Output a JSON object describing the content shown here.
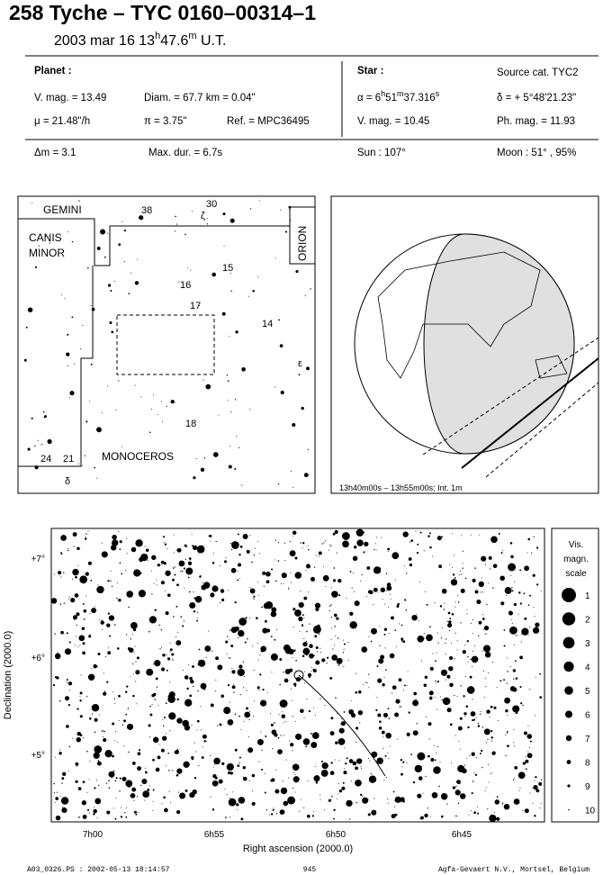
{
  "header": {
    "title": "258 Tyche  –  TYC 0160–00314–1",
    "date": [
      "2003 mar 16  13",
      "h",
      "47.6",
      "m",
      " U.T."
    ]
  },
  "info": {
    "planet_label": "Planet :",
    "star_label": "Star :",
    "source": "Source cat.  TYC2",
    "vmag": "V. mag. = 13.49",
    "diam": "Diam. = 67.7 km = 0.04\"",
    "alpha": [
      "α = 6",
      "h",
      "51",
      "m",
      "37.316",
      "s"
    ],
    "delta": "δ = + 5°48'21.23\"",
    "mu": "μ = 21.48\"/h",
    "parallax": "π =  3.75\"",
    "ref": "Ref. = MPC36495",
    "star_vmag": "V. mag. = 10.45",
    "phmag": "Ph. mag. = 11.93",
    "dm": "Δm = 3.1",
    "maxdur": "Max. dur. = 6.7s",
    "sun": "Sun : 107°",
    "moon": "Moon :  51° , 95%"
  },
  "finder": {
    "constellations": [
      "GEMINI",
      "CANIS",
      "MINOR",
      "ORION",
      "MONOCEROS"
    ],
    "stars": [
      "38",
      "30",
      "ζ",
      "15",
      "16",
      "17",
      "14",
      "ε",
      "18",
      "24",
      "21",
      "δ"
    ]
  },
  "globe": {
    "caption": "13h40m00s – 13h55m00s; Int. 1m"
  },
  "chart": {
    "y_title": "Declination (2000.0)",
    "x_title": "Right ascension (2000.0)",
    "yticks": [
      "+7°",
      "+6°",
      "+5°"
    ],
    "xticks": [
      "7h00",
      "6h55",
      "6h50",
      "6h45"
    ],
    "scale_title": [
      "Vis.",
      "magn.",
      "scale"
    ],
    "scale": [
      "1",
      "2",
      "3",
      "4",
      "5",
      "6",
      "7",
      "8",
      "9",
      "10"
    ]
  },
  "footer": {
    "left": "A03_0326.PS : 2002-05-13 18:14:57",
    "center": "945",
    "right": "Agfa-Gevaert N.V., Mortsel, Belgium"
  }
}
